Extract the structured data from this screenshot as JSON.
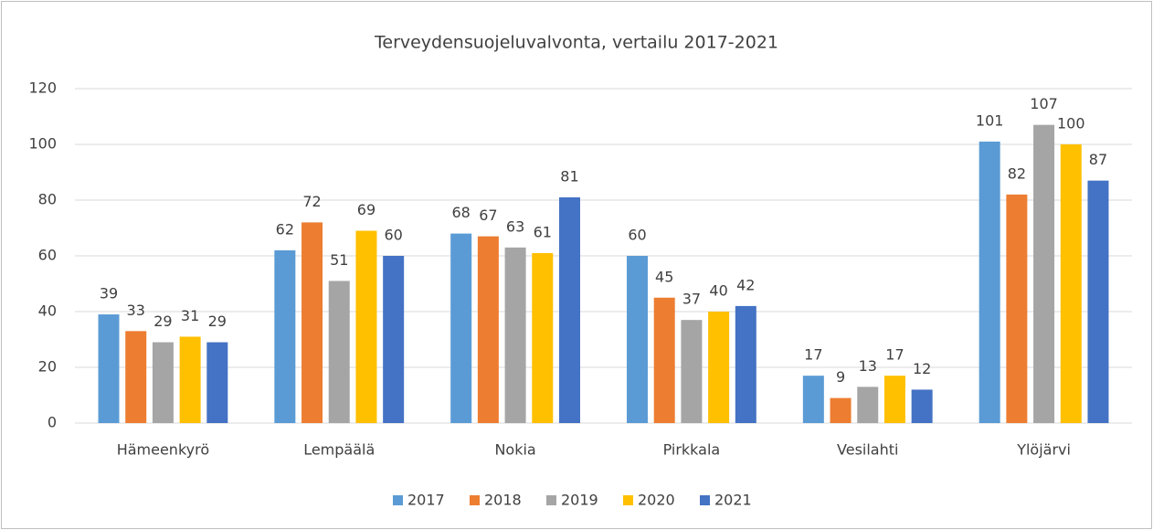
{
  "chart_data": {
    "type": "bar",
    "title": "Terveydensuojeluvalvonta, vertailu 2017-2021",
    "categories": [
      "Hämeenkyrö",
      "Lempäälä",
      "Nokia",
      "Pirkkala",
      "Vesilahti",
      "Ylöjärvi"
    ],
    "series": [
      {
        "name": "2017",
        "color": "#5b9bd5",
        "values": [
          39,
          62,
          68,
          60,
          17,
          101
        ]
      },
      {
        "name": "2018",
        "color": "#ed7d31",
        "values": [
          33,
          72,
          67,
          45,
          9,
          82
        ]
      },
      {
        "name": "2019",
        "color": "#a5a5a5",
        "values": [
          29,
          51,
          63,
          37,
          13,
          107
        ]
      },
      {
        "name": "2020",
        "color": "#ffc000",
        "values": [
          31,
          69,
          61,
          40,
          17,
          100
        ]
      },
      {
        "name": "2021",
        "color": "#4472c4",
        "values": [
          29,
          60,
          81,
          42,
          12,
          87
        ]
      }
    ],
    "ylim": [
      0,
      120
    ],
    "yticks": [
      0,
      20,
      40,
      60,
      80,
      100,
      120
    ],
    "grid": true,
    "legend": "bottom"
  }
}
